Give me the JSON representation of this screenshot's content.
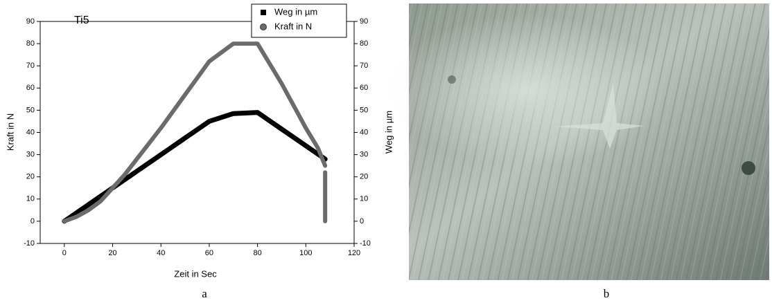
{
  "chart_data": {
    "type": "line",
    "title": "Ti5",
    "xlabel": "Zeit in Sec",
    "ylabel": "Kraft in N",
    "y2label": "Weg in µm",
    "xlim": [
      -10,
      120
    ],
    "xticks": [
      0,
      20,
      40,
      60,
      80,
      100,
      120
    ],
    "ylim": [
      -10,
      90
    ],
    "yticks": [
      -10,
      0,
      10,
      20,
      30,
      40,
      50,
      60,
      70,
      80,
      90
    ],
    "y2lim": [
      -10,
      90
    ],
    "y2ticks": [
      -10,
      0,
      10,
      20,
      30,
      40,
      50,
      60,
      70,
      80,
      90
    ],
    "legend": "upper right",
    "grid": false,
    "series": [
      {
        "name": "Weg in µm",
        "color": "#000000",
        "axis": "y2",
        "marker": "square",
        "x": [
          0,
          10,
          20,
          30,
          40,
          50,
          60,
          70,
          80,
          90,
          100,
          108
        ],
        "values": [
          0,
          7.5,
          15,
          22.5,
          30,
          37.5,
          45,
          48.5,
          49,
          41.5,
          34,
          28
        ]
      },
      {
        "name": "Kraft in N",
        "color": "#6b6b6b",
        "marker": "circle",
        "x": [
          0,
          5,
          10,
          15,
          20,
          25,
          30,
          35,
          40,
          45,
          50,
          55,
          60,
          65,
          70,
          75,
          80,
          85,
          90,
          95,
          100,
          105,
          108,
          108,
          108,
          108,
          108,
          108,
          108
        ],
        "values": [
          0,
          2,
          5,
          9,
          15,
          21,
          28,
          35,
          42,
          49.5,
          57,
          64.5,
          72,
          76,
          80,
          80,
          80,
          71,
          62,
          52,
          42,
          33,
          25,
          null,
          22,
          17,
          10,
          3,
          0
        ]
      }
    ]
  },
  "captions": [
    "a",
    "b"
  ]
}
